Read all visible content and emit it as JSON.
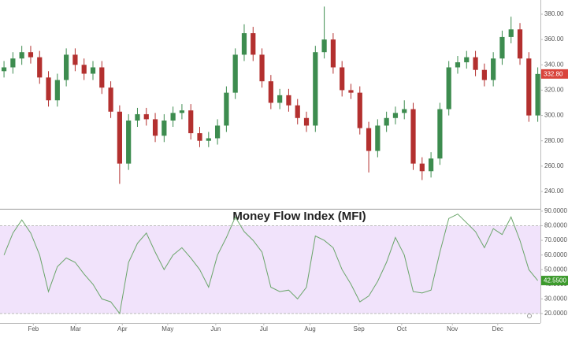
{
  "chart_data": [
    {
      "type": "candlestick",
      "x": [
        0,
        1,
        2,
        3,
        4,
        5,
        6,
        7,
        8,
        9,
        10,
        11,
        12,
        13,
        14,
        15,
        16,
        17,
        18,
        19,
        20,
        21,
        22,
        23,
        24,
        25,
        26,
        27,
        28,
        29,
        30,
        31,
        32,
        33,
        34,
        35,
        36,
        37,
        38,
        39,
        40,
        41,
        42,
        43,
        44,
        45,
        46,
        47,
        48,
        49,
        50,
        51,
        52,
        53,
        54,
        55,
        56,
        57,
        58,
        59,
        60
      ],
      "open": [
        335,
        338,
        345,
        350,
        346,
        330,
        312,
        328,
        348,
        340,
        333,
        338,
        322,
        303,
        262,
        296,
        301,
        297,
        284,
        296,
        302,
        304,
        286,
        280,
        282,
        292,
        318,
        348,
        365,
        348,
        327,
        310,
        316,
        308,
        298,
        292,
        350,
        360,
        338,
        320,
        318,
        290,
        272,
        292,
        298,
        302,
        305,
        262,
        256,
        266,
        305,
        338,
        342,
        346,
        336,
        328,
        345,
        362,
        368,
        345,
        300
      ],
      "high": [
        343,
        350,
        355,
        355,
        351,
        335,
        333,
        353,
        353,
        345,
        343,
        343,
        327,
        308,
        301,
        306,
        306,
        302,
        301,
        307,
        309,
        309,
        291,
        287,
        297,
        323,
        353,
        372,
        370,
        353,
        332,
        321,
        321,
        313,
        303,
        355,
        386,
        365,
        343,
        325,
        323,
        295,
        297,
        303,
        307,
        312,
        310,
        267,
        271,
        310,
        343,
        347,
        351,
        351,
        341,
        350,
        367,
        378,
        373,
        350,
        338
      ],
      "low": [
        330,
        333,
        340,
        341,
        325,
        307,
        307,
        323,
        335,
        328,
        328,
        317,
        298,
        246,
        257,
        291,
        292,
        279,
        279,
        291,
        297,
        281,
        275,
        275,
        277,
        287,
        313,
        343,
        343,
        322,
        305,
        305,
        303,
        293,
        287,
        287,
        345,
        333,
        315,
        313,
        285,
        255,
        267,
        287,
        293,
        297,
        257,
        249,
        251,
        261,
        300,
        333,
        337,
        331,
        323,
        323,
        340,
        357,
        340,
        295,
        295
      ],
      "close": [
        338,
        345,
        350,
        346,
        330,
        312,
        328,
        348,
        340,
        333,
        338,
        322,
        303,
        262,
        296,
        301,
        297,
        284,
        296,
        302,
        304,
        286,
        280,
        282,
        292,
        318,
        348,
        365,
        348,
        327,
        310,
        316,
        308,
        298,
        292,
        350,
        360,
        338,
        320,
        318,
        290,
        272,
        292,
        298,
        302,
        305,
        262,
        256,
        266,
        305,
        338,
        342,
        346,
        336,
        328,
        345,
        362,
        368,
        345,
        300,
        332.8
      ],
      "up_color": "#3d8c4f",
      "down_color": "#b3302f",
      "last_value": {
        "value": 332.8,
        "label": "332.80"
      },
      "last_color": "#d9443c",
      "xlim": [
        -0.45,
        60.3
      ],
      "ylim": [
        226.3,
        391.2
      ],
      "yticks": [
        {
          "value": 240,
          "label": "240.00"
        },
        {
          "value": 260,
          "label": "260.00"
        },
        {
          "value": 280,
          "label": "280.00"
        },
        {
          "value": 300,
          "label": "300.00"
        },
        {
          "value": 320,
          "label": "320.00"
        },
        {
          "value": 340,
          "label": "340.00"
        },
        {
          "value": 360,
          "label": "360.00"
        },
        {
          "value": 380,
          "label": "380.00"
        }
      ]
    },
    {
      "type": "line",
      "title": "Money Flow Index (MFI)",
      "x": [
        0,
        1,
        2,
        3,
        4,
        5,
        6,
        7,
        8,
        9,
        10,
        11,
        12,
        13,
        14,
        15,
        16,
        17,
        18,
        19,
        20,
        21,
        22,
        23,
        24,
        25,
        26,
        27,
        28,
        29,
        30,
        31,
        32,
        33,
        34,
        35,
        36,
        37,
        38,
        39,
        40,
        41,
        42,
        43,
        44,
        45,
        46,
        47,
        48,
        49,
        50,
        51,
        52,
        53,
        54,
        55,
        56,
        57,
        58,
        59,
        60
      ],
      "values": [
        60,
        75,
        84,
        75,
        60,
        35,
        52,
        58,
        55,
        47,
        40,
        30,
        28,
        20,
        55,
        68,
        75,
        62,
        50,
        60,
        65,
        58,
        50,
        38,
        60,
        72,
        86,
        76,
        70,
        62,
        38,
        35,
        36,
        30,
        38,
        73,
        70,
        65,
        50,
        40,
        28,
        32,
        42,
        55,
        72,
        60,
        35,
        34,
        36,
        62,
        85,
        88,
        82,
        76,
        65,
        78,
        74,
        86,
        70,
        50,
        42.55
      ],
      "color": "#6aa56a",
      "band": [
        20,
        80
      ],
      "band_color": "#f1e3fb",
      "last_value": {
        "value": 42.55,
        "label": "42.5500"
      },
      "last_color": "#3c9a2c",
      "xlim": [
        -0.45,
        60.3
      ],
      "ylim": [
        13.5,
        91.6
      ],
      "yticks": [
        {
          "value": 20,
          "label": "20.0000"
        },
        {
          "value": 30,
          "label": "30.0000"
        },
        {
          "value": 40,
          "label": "40.0000"
        },
        {
          "value": 50,
          "label": "50.0000"
        },
        {
          "value": 60,
          "label": "60.0000"
        },
        {
          "value": 70,
          "label": "70.0000"
        },
        {
          "value": 80,
          "label": "80.0000"
        },
        {
          "value": 90,
          "label": "90.0000"
        }
      ],
      "xticks": [
        {
          "value": 3.3,
          "label": "Feb"
        },
        {
          "value": 8.05,
          "label": "Mar"
        },
        {
          "value": 13.3,
          "label": "Apr"
        },
        {
          "value": 18.4,
          "label": "May"
        },
        {
          "value": 23.8,
          "label": "Jun"
        },
        {
          "value": 29.2,
          "label": "Jul"
        },
        {
          "value": 34.4,
          "label": "Aug"
        },
        {
          "value": 39.9,
          "label": "Sep"
        },
        {
          "value": 44.7,
          "label": "Oct"
        },
        {
          "value": 50.4,
          "label": "Nov"
        },
        {
          "value": 55.5,
          "label": "Dec"
        }
      ]
    }
  ]
}
